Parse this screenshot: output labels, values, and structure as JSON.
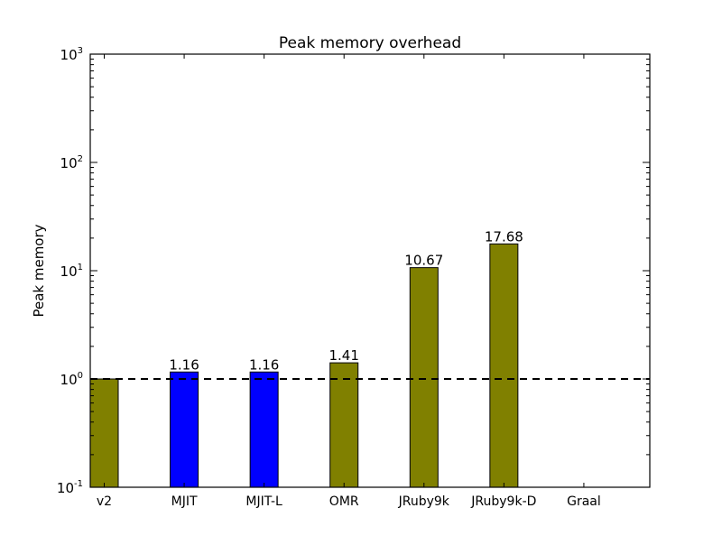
{
  "chart_data": {
    "type": "bar",
    "title": "Peak memory overhead",
    "xlabel": "",
    "ylabel": "Peak memory",
    "yscale": "log",
    "ylim": [
      0.1,
      1000
    ],
    "xlim": [
      0,
      7
    ],
    "bar_width": 0.35,
    "yticks": [
      {
        "value": 0.1,
        "base": "10",
        "exp": "-1"
      },
      {
        "value": 1,
        "base": "10",
        "exp": "0"
      },
      {
        "value": 10,
        "base": "10",
        "exp": "1"
      },
      {
        "value": 100,
        "base": "10",
        "exp": "2"
      },
      {
        "value": 1000,
        "base": "10",
        "exp": "3"
      }
    ],
    "categories": [
      "v2",
      "MJIT",
      "MJIT-L",
      "OMR",
      "JRuby9k",
      "JRuby9k-D",
      "Graal"
    ],
    "values": [
      1.0,
      1.16,
      1.16,
      1.41,
      10.67,
      17.68,
      null
    ],
    "labels": [
      "",
      "1.16",
      "1.16",
      "1.41",
      "10.67",
      "17.68",
      ""
    ],
    "colors": [
      "#808000",
      "#0000ff",
      "#0000ff",
      "#808000",
      "#808000",
      "#808000",
      "#808000"
    ],
    "reference_line": {
      "value": 1.0,
      "style": "dashed",
      "color": "#000000"
    },
    "grid": false
  }
}
